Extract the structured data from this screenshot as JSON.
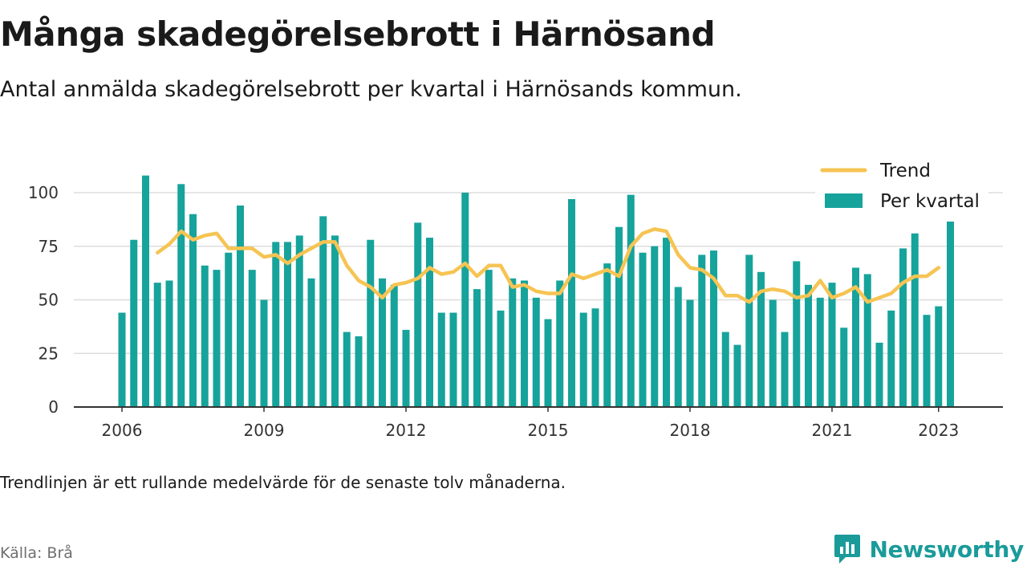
{
  "header": {
    "title": "Många skadegörelsebrott i Härnösand",
    "subtitle": "Antal anmälda skadegörelsebrott per kvartal i Härnösands kommun."
  },
  "footer": {
    "note": "Trendlinjen är ett rullande medelvärde för de senaste tolv månaderna.",
    "source": "Källa: Brå",
    "brand": "Newsworthy"
  },
  "colors": {
    "bars": "#16a39b",
    "trend": "#f6c453",
    "grid": "#dddddd",
    "axis": "#333333",
    "brand": "#1a9b9a"
  },
  "chart_data": {
    "type": "bar",
    "x_unit": "quarter",
    "x": [
      "2006Q1",
      "2006Q2",
      "2006Q3",
      "2006Q4",
      "2007Q1",
      "2007Q2",
      "2007Q3",
      "2007Q4",
      "2008Q1",
      "2008Q2",
      "2008Q3",
      "2008Q4",
      "2009Q1",
      "2009Q2",
      "2009Q3",
      "2009Q4",
      "2010Q1",
      "2010Q2",
      "2010Q3",
      "2010Q4",
      "2011Q1",
      "2011Q2",
      "2011Q3",
      "2011Q4",
      "2012Q1",
      "2012Q2",
      "2012Q3",
      "2012Q4",
      "2013Q1",
      "2013Q2",
      "2013Q3",
      "2013Q4",
      "2014Q1",
      "2014Q2",
      "2014Q3",
      "2014Q4",
      "2015Q1",
      "2015Q2",
      "2015Q3",
      "2015Q4",
      "2016Q1",
      "2016Q2",
      "2016Q3",
      "2016Q4",
      "2017Q1",
      "2017Q2",
      "2017Q3",
      "2017Q4",
      "2018Q1",
      "2018Q2",
      "2018Q3",
      "2018Q4",
      "2019Q1",
      "2019Q2",
      "2019Q3",
      "2019Q4",
      "2020Q1",
      "2020Q2",
      "2020Q3",
      "2020Q4",
      "2021Q1",
      "2021Q2",
      "2021Q3",
      "2021Q4",
      "2022Q1",
      "2022Q2",
      "2022Q3",
      "2022Q4",
      "2023Q1",
      "2023Q2",
      "2023Q3",
      "2023Q4"
    ],
    "series": [
      {
        "name": "Per kvartal",
        "type": "bar",
        "values": [
          44,
          78,
          108,
          58,
          59,
          104,
          90,
          66,
          64,
          72,
          94,
          64,
          50,
          77,
          77,
          80,
          60,
          89,
          80,
          35,
          33,
          78,
          60,
          57,
          36,
          86,
          79,
          44,
          44,
          100,
          55,
          64,
          45,
          60,
          59,
          51,
          41,
          59,
          97,
          44,
          46,
          67,
          84,
          99,
          72,
          75,
          79,
          56,
          50,
          71,
          73,
          35,
          29,
          71,
          63,
          50,
          35,
          68,
          57,
          51,
          58,
          37,
          65,
          62,
          30,
          45,
          74,
          81,
          43,
          47,
          87,
          null
        ]
      },
      {
        "name": "Trend",
        "type": "line",
        "values": [
          null,
          null,
          null,
          72,
          76,
          82,
          78,
          80,
          81,
          74,
          74,
          74,
          70,
          71,
          67,
          71,
          74,
          77,
          77,
          66,
          59,
          56,
          51,
          57,
          58,
          60,
          65,
          62,
          63,
          67,
          61,
          66,
          66,
          56,
          57,
          54,
          53,
          53,
          62,
          60,
          62,
          64,
          61,
          75,
          81,
          83,
          82,
          71,
          65,
          64,
          60,
          52,
          52,
          49,
          54,
          55,
          54,
          51,
          52,
          59,
          51,
          53,
          56,
          49,
          51,
          53,
          58,
          61,
          61,
          65,
          null,
          null
        ]
      }
    ],
    "x_ticks": [
      "2006",
      "2009",
      "2012",
      "2015",
      "2018",
      "2021",
      "2023"
    ],
    "y_ticks": [
      0,
      25,
      50,
      75,
      100
    ],
    "ylim": [
      0,
      112
    ],
    "legend": {
      "position": "top-right",
      "entries": [
        "Trend",
        "Per kvartal"
      ]
    },
    "grid": true
  }
}
